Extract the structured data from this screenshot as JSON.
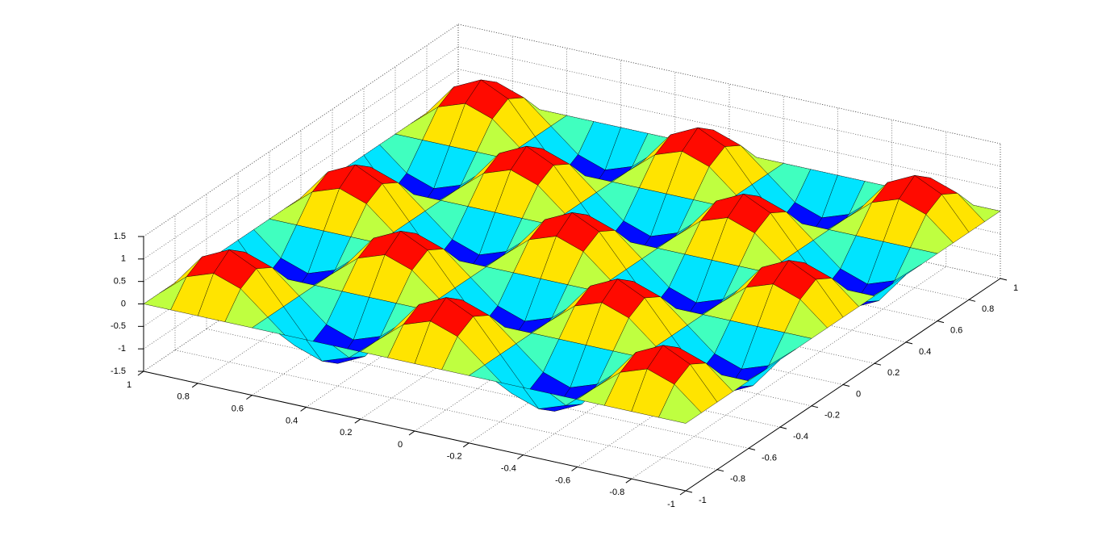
{
  "chart_data": {
    "type": "surface",
    "colormap": "jet",
    "grid": true,
    "x": [
      -1,
      -0.9,
      -0.8,
      -0.7,
      -0.6,
      -0.5,
      -0.4,
      -0.3,
      -0.2,
      -0.1,
      0,
      0.1,
      0.2,
      0.3,
      0.4,
      0.5,
      0.6,
      0.7,
      0.8,
      0.9,
      1
    ],
    "y": [
      -1,
      -0.9,
      -0.8,
      -0.7,
      -0.6,
      -0.5,
      -0.4,
      -0.3,
      -0.2,
      -0.1,
      0,
      0.1,
      0.2,
      0.3,
      0.4,
      0.5,
      0.6,
      0.7,
      0.8,
      0.9,
      1
    ],
    "z": [
      [
        0,
        0,
        0,
        0,
        0,
        0,
        0,
        0,
        0,
        0,
        0,
        0,
        0,
        0,
        0,
        0,
        0,
        0,
        0,
        0,
        0
      ],
      [
        0,
        0.5,
        0.71,
        0.5,
        0,
        -0.5,
        -0.71,
        -0.5,
        0,
        0.5,
        0.71,
        0.5,
        0,
        -0.5,
        -0.71,
        -0.5,
        0,
        0.5,
        0.71,
        0.5,
        0
      ],
      [
        0,
        0.71,
        1,
        0.71,
        0,
        -0.71,
        -1,
        -0.71,
        0,
        0.71,
        1,
        0.71,
        0,
        -0.71,
        -1,
        -0.71,
        0,
        0.71,
        1,
        0.71,
        0
      ],
      [
        0,
        0.5,
        0.71,
        0.5,
        0,
        -0.5,
        -0.71,
        -0.5,
        0,
        0.5,
        0.71,
        0.5,
        0,
        -0.5,
        -0.71,
        -0.5,
        0,
        0.5,
        0.71,
        0.5,
        0
      ],
      [
        0,
        0,
        0,
        0,
        0,
        0,
        0,
        0,
        0,
        0,
        0,
        0,
        0,
        0,
        0,
        0,
        0,
        0,
        0,
        0,
        0
      ],
      [
        0,
        -0.5,
        -0.71,
        -0.5,
        0,
        0.5,
        0.71,
        0.5,
        0,
        -0.5,
        -0.71,
        -0.5,
        0,
        0.5,
        0.71,
        0.5,
        0,
        -0.5,
        -0.71,
        -0.5,
        0
      ],
      [
        0,
        -0.71,
        -1,
        -0.71,
        0,
        0.71,
        1,
        0.71,
        0,
        -0.71,
        -1,
        -0.71,
        0,
        0.71,
        1,
        0.71,
        0,
        -0.71,
        -1,
        -0.71,
        0
      ],
      [
        0,
        -0.5,
        -0.71,
        -0.5,
        0,
        0.5,
        0.71,
        0.5,
        0,
        -0.5,
        -0.71,
        -0.5,
        0,
        0.5,
        0.71,
        0.5,
        0,
        -0.5,
        -0.71,
        -0.5,
        0
      ],
      [
        0,
        0,
        0,
        0,
        0,
        0,
        0,
        0,
        0,
        0,
        0,
        0,
        0,
        0,
        0,
        0,
        0,
        0,
        0,
        0,
        0
      ],
      [
        0,
        0.5,
        0.71,
        0.5,
        0,
        -0.5,
        -0.71,
        -0.5,
        0,
        0.5,
        0.71,
        0.5,
        0,
        -0.5,
        -0.71,
        -0.5,
        0,
        0.5,
        0.71,
        0.5,
        0
      ],
      [
        0,
        0.71,
        1,
        0.71,
        0,
        -0.71,
        -1,
        -0.71,
        0,
        0.71,
        1,
        0.71,
        0,
        -0.71,
        -1,
        -0.71,
        0,
        0.71,
        1,
        0.71,
        0
      ],
      [
        0,
        0.5,
        0.71,
        0.5,
        0,
        -0.5,
        -0.71,
        -0.5,
        0,
        0.5,
        0.71,
        0.5,
        0,
        -0.5,
        -0.71,
        -0.5,
        0,
        0.5,
        0.71,
        0.5,
        0
      ],
      [
        0,
        0,
        0,
        0,
        0,
        0,
        0,
        0,
        0,
        0,
        0,
        0,
        0,
        0,
        0,
        0,
        0,
        0,
        0,
        0,
        0
      ],
      [
        0,
        -0.5,
        -0.71,
        -0.5,
        0,
        0.5,
        0.71,
        0.5,
        0,
        -0.5,
        -0.71,
        -0.5,
        0,
        0.5,
        0.71,
        0.5,
        0,
        -0.5,
        -0.71,
        -0.5,
        0
      ],
      [
        0,
        -0.71,
        -1,
        -0.71,
        0,
        0.71,
        1,
        0.71,
        0,
        -0.71,
        -1,
        -0.71,
        0,
        0.71,
        1,
        0.71,
        0,
        -0.71,
        -1,
        -0.71,
        0
      ],
      [
        0,
        -0.5,
        -0.71,
        -0.5,
        0,
        0.5,
        0.71,
        0.5,
        0,
        -0.5,
        -0.71,
        -0.5,
        0,
        0.5,
        0.71,
        0.5,
        0,
        -0.5,
        -0.71,
        -0.5,
        0
      ],
      [
        0,
        0,
        0,
        0,
        0,
        0,
        0,
        0,
        0,
        0,
        0,
        0,
        0,
        0,
        0,
        0,
        0,
        0,
        0,
        0,
        0
      ],
      [
        0,
        0.5,
        0.71,
        0.5,
        0,
        -0.5,
        -0.71,
        -0.5,
        0,
        0.5,
        0.71,
        0.5,
        0,
        -0.5,
        -0.71,
        -0.5,
        0,
        0.5,
        0.71,
        0.5,
        0
      ],
      [
        0,
        0.71,
        1,
        0.71,
        0,
        -0.71,
        -1,
        -0.71,
        0,
        0.71,
        1,
        0.71,
        0,
        -0.71,
        -1,
        -0.71,
        0,
        0.71,
        1,
        0.71,
        0
      ],
      [
        0,
        0.5,
        0.71,
        0.5,
        0,
        -0.5,
        -0.71,
        -0.5,
        0,
        0.5,
        0.71,
        0.5,
        0,
        -0.5,
        -0.71,
        -0.5,
        0,
        0.5,
        0.71,
        0.5,
        0
      ],
      [
        0,
        0,
        0,
        0,
        0,
        0,
        0,
        0,
        0,
        0,
        0,
        0,
        0,
        0,
        0,
        0,
        0,
        0,
        0,
        0,
        0
      ]
    ],
    "xlim": [
      -1,
      1
    ],
    "ylim": [
      -1,
      1
    ],
    "zlim": [
      -1.5,
      1.5
    ],
    "xticks": [
      -1,
      -0.8,
      -0.6,
      -0.4,
      -0.2,
      0,
      0.2,
      0.4,
      0.6,
      0.8,
      1
    ],
    "yticks": [
      -1,
      -0.8,
      -0.6,
      -0.4,
      -0.2,
      0,
      0.2,
      0.4,
      0.6,
      0.8,
      1
    ],
    "zticks": [
      -1.5,
      -1,
      -0.5,
      0,
      0.5,
      1,
      1.5
    ]
  }
}
